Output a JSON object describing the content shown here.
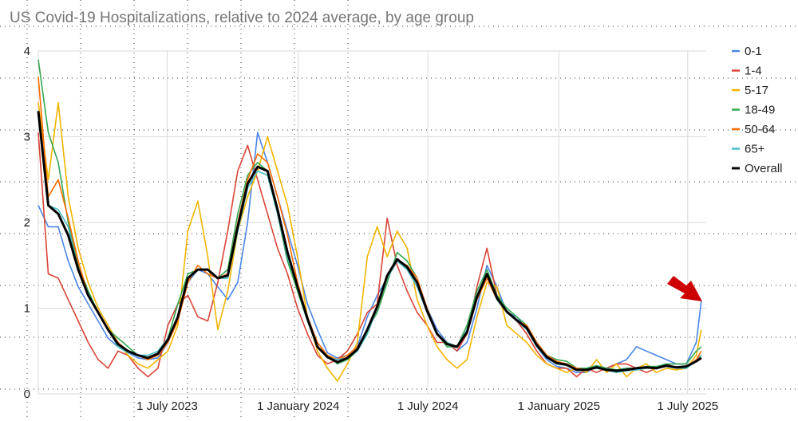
{
  "chart_data": {
    "type": "line",
    "title": "US Covid-19 Hospitalizations, relative to 2024 average, by age group",
    "xlabel": "",
    "ylabel": "",
    "ylim": [
      0,
      4
    ],
    "yticks": [
      0,
      1,
      2,
      3,
      4
    ],
    "xlim": [
      "2023-01-01",
      "2025-07-27"
    ],
    "xticks": [
      {
        "date": "2023-07-01",
        "label": "1 July 2023"
      },
      {
        "date": "2024-01-01",
        "label": "1 January 2024"
      },
      {
        "date": "2024-07-01",
        "label": "1 July 2024"
      },
      {
        "date": "2025-01-01",
        "label": "1 January 2025"
      },
      {
        "date": "2025-07-01",
        "label": "1 July 2025"
      }
    ],
    "grid": true,
    "legend_position": "right",
    "dates": [
      "2023-01-01",
      "2023-01-15",
      "2023-01-29",
      "2023-02-12",
      "2023-02-26",
      "2023-03-12",
      "2023-03-26",
      "2023-04-09",
      "2023-04-23",
      "2023-05-07",
      "2023-05-21",
      "2023-06-04",
      "2023-06-18",
      "2023-07-02",
      "2023-07-16",
      "2023-07-30",
      "2023-08-13",
      "2023-08-27",
      "2023-09-10",
      "2023-09-24",
      "2023-10-08",
      "2023-10-22",
      "2023-11-05",
      "2023-11-19",
      "2023-12-03",
      "2023-12-17",
      "2023-12-31",
      "2024-01-14",
      "2024-01-28",
      "2024-02-11",
      "2024-02-25",
      "2024-03-10",
      "2024-03-24",
      "2024-04-07",
      "2024-04-21",
      "2024-05-05",
      "2024-05-19",
      "2024-06-02",
      "2024-06-16",
      "2024-06-30",
      "2024-07-14",
      "2024-07-28",
      "2024-08-11",
      "2024-08-25",
      "2024-09-08",
      "2024-09-22",
      "2024-10-06",
      "2024-10-20",
      "2024-11-03",
      "2024-11-17",
      "2024-12-01",
      "2024-12-15",
      "2024-12-29",
      "2025-01-12",
      "2025-01-26",
      "2025-02-09",
      "2025-02-23",
      "2025-03-09",
      "2025-03-23",
      "2025-04-06",
      "2025-04-20",
      "2025-05-04",
      "2025-05-18",
      "2025-06-01",
      "2025-06-15",
      "2025-06-29",
      "2025-07-13",
      "2025-07-20"
    ],
    "series": [
      {
        "name": "0-1",
        "color": "#4a86e8",
        "values": [
          2.2,
          1.95,
          1.95,
          1.55,
          1.25,
          1.05,
          0.85,
          0.65,
          0.55,
          0.48,
          0.42,
          0.4,
          0.42,
          0.6,
          0.9,
          1.3,
          1.45,
          1.4,
          1.25,
          1.1,
          1.3,
          2.0,
          3.05,
          2.7,
          2.3,
          1.9,
          1.5,
          1.05,
          0.75,
          0.48,
          0.42,
          0.45,
          0.55,
          0.9,
          1.15,
          1.35,
          1.55,
          1.45,
          1.3,
          1.0,
          0.75,
          0.6,
          0.5,
          0.6,
          1.0,
          1.5,
          1.25,
          0.95,
          0.9,
          0.75,
          0.55,
          0.4,
          0.32,
          0.3,
          0.25,
          0.25,
          0.32,
          0.3,
          0.35,
          0.4,
          0.55,
          0.5,
          0.45,
          0.4,
          0.35,
          0.35,
          0.6,
          1.08
        ]
      },
      {
        "name": "1-4",
        "color": "#db4437",
        "values": [
          3.05,
          1.4,
          1.35,
          1.1,
          0.85,
          0.6,
          0.4,
          0.3,
          0.5,
          0.45,
          0.3,
          0.2,
          0.3,
          0.8,
          1.05,
          1.15,
          0.9,
          0.85,
          1.3,
          1.9,
          2.6,
          2.9,
          2.5,
          2.1,
          1.7,
          1.4,
          1.0,
          0.7,
          0.45,
          0.35,
          0.4,
          0.5,
          0.7,
          0.95,
          1.05,
          2.05,
          1.5,
          1.2,
          0.95,
          0.8,
          0.6,
          0.6,
          0.5,
          0.7,
          1.25,
          1.7,
          1.15,
          0.95,
          0.85,
          0.7,
          0.5,
          0.35,
          0.3,
          0.3,
          0.2,
          0.3,
          0.25,
          0.3,
          0.35,
          0.35,
          0.3,
          0.25,
          0.3,
          0.35,
          0.3,
          0.3,
          0.4,
          0.45
        ]
      },
      {
        "name": "5-17",
        "color": "#f4b400",
        "values": [
          3.4,
          2.5,
          3.4,
          2.3,
          1.7,
          1.3,
          1.0,
          0.8,
          0.6,
          0.45,
          0.35,
          0.3,
          0.4,
          0.5,
          0.8,
          1.9,
          2.25,
          1.6,
          0.75,
          1.2,
          1.9,
          2.3,
          2.6,
          3.0,
          2.6,
          2.2,
          1.6,
          0.9,
          0.5,
          0.3,
          0.15,
          0.35,
          0.6,
          1.6,
          1.95,
          1.6,
          1.9,
          1.7,
          1.1,
          0.8,
          0.55,
          0.4,
          0.3,
          0.4,
          0.9,
          1.3,
          1.25,
          0.8,
          0.7,
          0.6,
          0.45,
          0.35,
          0.3,
          0.25,
          0.3,
          0.25,
          0.4,
          0.25,
          0.35,
          0.2,
          0.3,
          0.35,
          0.25,
          0.3,
          0.28,
          0.3,
          0.45,
          0.75
        ]
      },
      {
        "name": "18-49",
        "color": "#34a853",
        "values": [
          3.9,
          3.05,
          2.7,
          2.0,
          1.5,
          1.2,
          0.95,
          0.75,
          0.65,
          0.55,
          0.45,
          0.4,
          0.45,
          0.65,
          1.05,
          1.4,
          1.45,
          1.45,
          1.35,
          1.45,
          2.1,
          2.55,
          2.7,
          2.6,
          2.1,
          1.55,
          1.2,
          0.85,
          0.55,
          0.45,
          0.35,
          0.4,
          0.5,
          0.75,
          0.95,
          1.3,
          1.65,
          1.55,
          1.35,
          0.95,
          0.7,
          0.55,
          0.55,
          0.8,
          1.2,
          1.45,
          1.15,
          1.0,
          0.9,
          0.8,
          0.6,
          0.45,
          0.4,
          0.38,
          0.3,
          0.3,
          0.33,
          0.3,
          0.28,
          0.3,
          0.3,
          0.32,
          0.32,
          0.35,
          0.35,
          0.35,
          0.5,
          0.55
        ]
      },
      {
        "name": "50-64",
        "color": "#ff6d01",
        "values": [
          3.7,
          2.3,
          2.5,
          2.05,
          1.55,
          1.15,
          0.95,
          0.75,
          0.6,
          0.5,
          0.45,
          0.4,
          0.45,
          0.6,
          0.85,
          1.3,
          1.5,
          1.4,
          1.35,
          1.4,
          2.0,
          2.5,
          2.8,
          2.7,
          2.3,
          1.85,
          1.3,
          0.9,
          0.6,
          0.45,
          0.4,
          0.45,
          0.55,
          0.7,
          1.0,
          1.35,
          1.55,
          1.5,
          1.35,
          1.0,
          0.7,
          0.6,
          0.55,
          0.7,
          1.1,
          1.35,
          1.1,
          0.95,
          0.85,
          0.8,
          0.6,
          0.45,
          0.38,
          0.35,
          0.3,
          0.28,
          0.3,
          0.28,
          0.25,
          0.28,
          0.28,
          0.3,
          0.3,
          0.32,
          0.3,
          0.3,
          0.4,
          0.5
        ]
      },
      {
        "name": "65+",
        "color": "#46bdc6",
        "values": [
          3.25,
          2.2,
          2.15,
          1.95,
          1.45,
          1.15,
          0.95,
          0.75,
          0.55,
          0.48,
          0.45,
          0.45,
          0.5,
          0.65,
          0.9,
          1.35,
          1.45,
          1.45,
          1.35,
          1.35,
          1.9,
          2.4,
          2.6,
          2.55,
          2.1,
          1.6,
          1.25,
          0.85,
          0.55,
          0.42,
          0.4,
          0.42,
          0.5,
          0.7,
          1.0,
          1.35,
          1.55,
          1.45,
          1.25,
          0.95,
          0.7,
          0.6,
          0.55,
          0.75,
          1.15,
          1.4,
          1.1,
          0.95,
          0.85,
          0.75,
          0.55,
          0.42,
          0.35,
          0.33,
          0.28,
          0.28,
          0.3,
          0.28,
          0.25,
          0.27,
          0.28,
          0.3,
          0.3,
          0.32,
          0.3,
          0.3,
          0.38,
          0.45
        ]
      },
      {
        "name": "Overall",
        "color": "#000000",
        "values": [
          3.3,
          2.2,
          2.1,
          1.85,
          1.45,
          1.15,
          0.95,
          0.75,
          0.58,
          0.5,
          0.45,
          0.42,
          0.47,
          0.63,
          0.9,
          1.35,
          1.45,
          1.45,
          1.35,
          1.38,
          1.95,
          2.45,
          2.65,
          2.6,
          2.15,
          1.65,
          1.25,
          0.88,
          0.55,
          0.43,
          0.37,
          0.42,
          0.52,
          0.75,
          1.02,
          1.38,
          1.57,
          1.48,
          1.3,
          0.97,
          0.7,
          0.58,
          0.55,
          0.72,
          1.13,
          1.4,
          1.12,
          0.96,
          0.86,
          0.77,
          0.57,
          0.43,
          0.36,
          0.34,
          0.28,
          0.28,
          0.31,
          0.28,
          0.27,
          0.28,
          0.3,
          0.31,
          0.3,
          0.33,
          0.31,
          0.32,
          0.38,
          0.42
        ]
      }
    ]
  },
  "annotation": {
    "arrow_color": "#cc0000"
  }
}
